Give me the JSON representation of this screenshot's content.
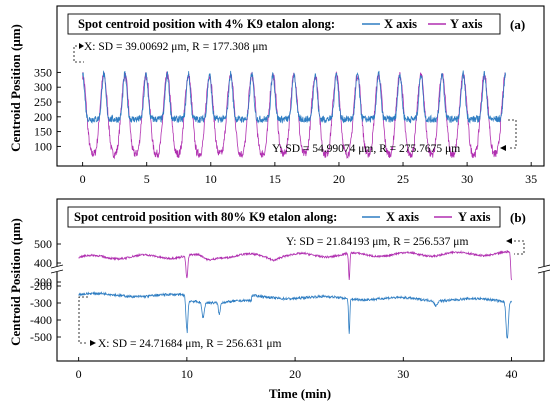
{
  "chart_data": {
    "type": "line",
    "x_axis_label": "Time (min)",
    "y_axis_label": "Centroid Position (μm)",
    "panels": [
      {
        "panel_label": "(a)",
        "title": "Spot centroid position with 4% K9 etalon along:",
        "legend": [
          {
            "label": "X axis",
            "color": "#2e7dc2"
          },
          {
            "label": "Y axis",
            "color": "#b02fb0"
          }
        ],
        "xlim": [
          -2,
          36
        ],
        "x_ticks": [
          "0",
          "5",
          "10",
          "15",
          "20",
          "25",
          "30",
          "35"
        ],
        "y_ticks": [
          "100",
          "150",
          "200",
          "250",
          "300",
          "350"
        ],
        "ylim": [
          40,
          380
        ],
        "annotations": [
          "X: SD = 39.00692 μm, R = 177.308 μm",
          "Y: SD = 54.99074 μm, R = 275.7675 μm"
        ],
        "series": [
          {
            "name": "X axis",
            "x_range": [
              0,
              33
            ],
            "period_min": 1.65,
            "baseline": 192,
            "peak": 345,
            "approx_sd": 39.00692,
            "approx_range": 177.308
          },
          {
            "name": "Y axis",
            "x_range": [
              0,
              33
            ],
            "period_min": 1.65,
            "trough": 75,
            "peak": 340,
            "approx_sd": 54.99074,
            "approx_range": 275.7675
          }
        ]
      },
      {
        "panel_label": "(b)",
        "title": "Spot centroid position with 80% K9 etalon along:",
        "legend": [
          {
            "label": "X axis",
            "color": "#2e7dc2"
          },
          {
            "label": "Y axis",
            "color": "#b02fb0"
          }
        ],
        "xlim": [
          -2,
          43
        ],
        "x_ticks": [
          "0",
          "10",
          "20",
          "30",
          "40"
        ],
        "y_ticks": [
          "-500",
          "-400",
          "-300",
          "-200",
          "300",
          "400",
          "500"
        ],
        "y_axis_break": true,
        "annotations": [
          "Y: SD = 21.84193 μm, R = 256.537 μm",
          "X: SD = 24.71684 μm, R = 256.631 μm"
        ],
        "series": [
          {
            "name": "X axis",
            "x_range": [
              0,
              40
            ],
            "level_start": -250,
            "level_end": -285,
            "dips_at_min": [
              10,
              25,
              39.5
            ],
            "approx_sd": 24.71684,
            "approx_range": 256.631
          },
          {
            "name": "Y axis",
            "x_range": [
              0,
              40
            ],
            "level_start": 430,
            "level_end": 450,
            "dips_at_min": [
              10,
              25,
              40
            ],
            "approx_sd": 21.84193,
            "approx_range": 256.537
          }
        ]
      }
    ]
  }
}
